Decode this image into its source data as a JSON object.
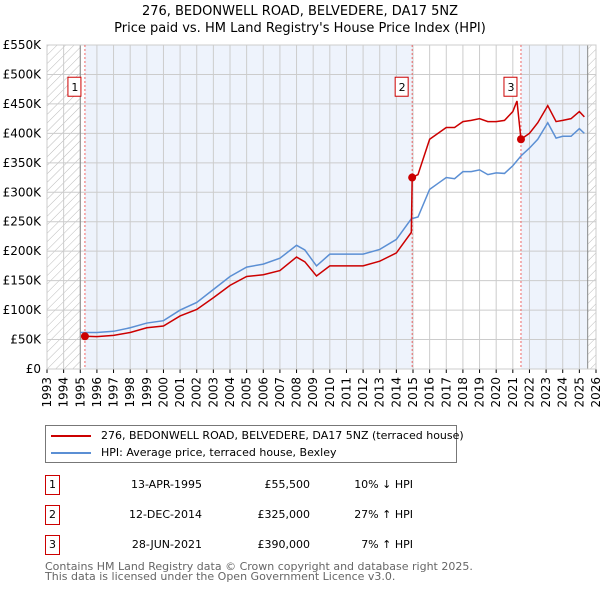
{
  "chart_data": {
    "type": "line",
    "title": "276, BEDONWELL ROAD, BELVEDERE, DA17 5NZ",
    "subtitle": "Price paid vs. HM Land Registry's House Price Index (HPI)",
    "xlim": [
      1993,
      2026
    ],
    "ylim": [
      0,
      550000
    ],
    "x_ticks": [
      "1993",
      "1994",
      "1995",
      "1996",
      "1997",
      "1998",
      "1999",
      "2000",
      "2001",
      "2002",
      "2003",
      "2004",
      "2005",
      "2006",
      "2007",
      "2008",
      "2009",
      "2010",
      "2011",
      "2012",
      "2013",
      "2014",
      "2015",
      "2016",
      "2017",
      "2018",
      "2019",
      "2020",
      "2021",
      "2022",
      "2023",
      "2024",
      "2025",
      "2026"
    ],
    "y_ticks": [
      "£0",
      "£50K",
      "£100K",
      "£150K",
      "£200K",
      "£250K",
      "£300K",
      "£350K",
      "£400K",
      "£450K",
      "£500K",
      "£550K"
    ],
    "grid": true,
    "data_range": [
      1995.0,
      2025.5
    ],
    "series": [
      {
        "name": "276, BEDONWELL ROAD, BELVEDERE, DA17 5NZ (terraced house)",
        "color": "#cc0000",
        "x": [
          1995.28,
          1996,
          1997,
          1998,
          1999,
          2000,
          2001,
          2002,
          2003,
          2004,
          2005,
          2006,
          2007,
          2008,
          2008.5,
          2009.2,
          2010,
          2011,
          2012,
          2013,
          2014,
          2014.9,
          2014.95,
          2015.3,
          2016,
          2016.5,
          2017,
          2017.5,
          2018,
          2018.5,
          2019,
          2019.5,
          2020,
          2020.5,
          2021,
          2021.25,
          2021.49,
          2022,
          2022.5,
          2023.1,
          2023.6,
          2024,
          2024.5,
          2025,
          2025.3
        ],
        "y": [
          55500,
          55000,
          57000,
          62000,
          70000,
          73000,
          90000,
          101000,
          121000,
          142000,
          157000,
          160000,
          167000,
          190000,
          182000,
          158000,
          175000,
          175000,
          175000,
          183000,
          197000,
          232000,
          325000,
          330000,
          390000,
          400000,
          410000,
          410000,
          420000,
          422000,
          425000,
          420000,
          420000,
          422000,
          437000,
          455000,
          390000,
          400000,
          418000,
          447000,
          420000,
          422000,
          425000,
          437000,
          428000
        ]
      },
      {
        "name": "HPI: Average price, terraced house, Bexley",
        "color": "#5b8fd4",
        "x": [
          1995.0,
          1996,
          1997,
          1998,
          1999,
          2000,
          2001,
          2002,
          2003,
          2004,
          2005,
          2006,
          2007,
          2008,
          2008.5,
          2009.2,
          2010,
          2011,
          2012,
          2013,
          2014,
          2014.9,
          2015.3,
          2016,
          2016.5,
          2017,
          2017.5,
          2018,
          2018.5,
          2019,
          2019.5,
          2020,
          2020.5,
          2021,
          2021.5,
          2022,
          2022.5,
          2023.1,
          2023.6,
          2024,
          2024.5,
          2025,
          2025.3
        ],
        "y": [
          62000,
          62000,
          64000,
          70000,
          78000,
          82000,
          100000,
          113000,
          135000,
          157000,
          173000,
          178000,
          188000,
          210000,
          202000,
          175000,
          195000,
          195000,
          195000,
          203000,
          220000,
          255000,
          258000,
          305000,
          315000,
          325000,
          323000,
          335000,
          335000,
          338000,
          330000,
          333000,
          332000,
          345000,
          362000,
          375000,
          390000,
          418000,
          392000,
          395000,
          395000,
          408000,
          400000
        ]
      }
    ],
    "sales": [
      {
        "label": "1",
        "date": "13-APR-1995",
        "x": 1995.28,
        "price": "£55,500",
        "value": 55500,
        "hpi": "10% ↓ HPI"
      },
      {
        "label": "2",
        "date": "12-DEC-2014",
        "x": 2014.95,
        "price": "£325,000",
        "value": 325000,
        "hpi": "27% ↑ HPI"
      },
      {
        "label": "3",
        "date": "28-JUN-2021",
        "x": 2021.49,
        "price": "£390,000",
        "value": 390000,
        "hpi": "7% ↑ HPI"
      }
    ],
    "legend_placement": "below"
  },
  "footer": {
    "line1": "Contains HM Land Registry data © Crown copyright and database right 2025.",
    "line2": "This data is licensed under the Open Government Licence v3.0."
  }
}
